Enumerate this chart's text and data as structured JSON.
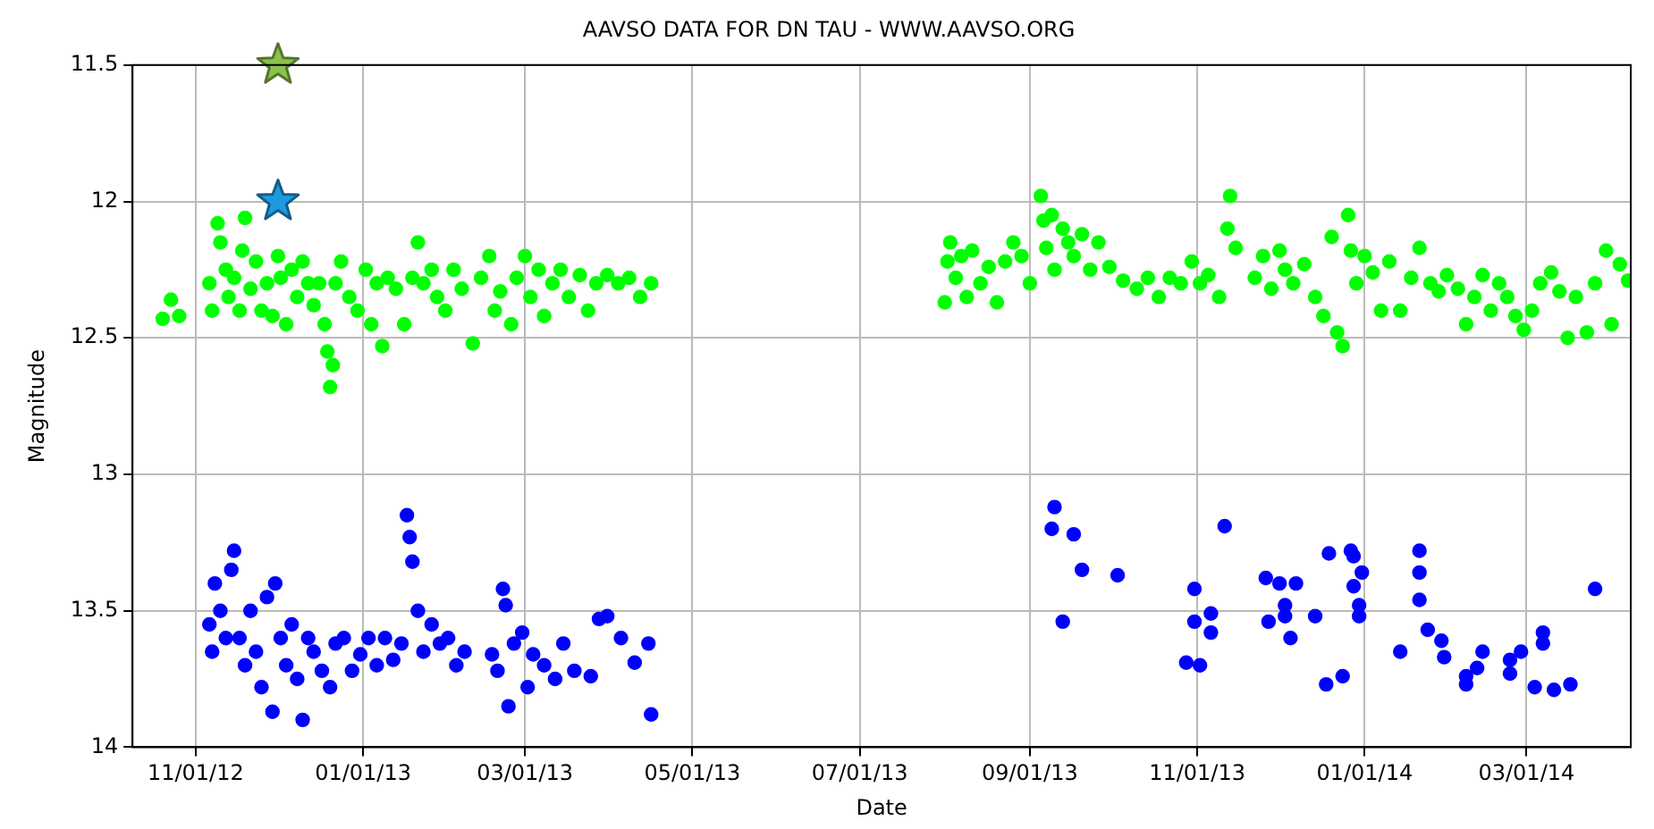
{
  "chart_data": {
    "type": "scatter",
    "title": "AAVSO DATA FOR DN TAU - WWW.AAVSO.ORG",
    "xlabel": "Date",
    "ylabel": "Magnitude",
    "xlim": [
      "2012-10-09",
      "2014-04-08"
    ],
    "ylim": [
      14,
      11.5
    ],
    "xticks": [
      {
        "value": "2012-11-01",
        "label": "11/01/12"
      },
      {
        "value": "2013-01-01",
        "label": "01/01/13"
      },
      {
        "value": "2013-03-01",
        "label": "03/01/13"
      },
      {
        "value": "2013-05-01",
        "label": "05/01/13"
      },
      {
        "value": "2013-07-01",
        "label": "07/01/13"
      },
      {
        "value": "2013-09-01",
        "label": "09/01/13"
      },
      {
        "value": "2013-11-01",
        "label": "11/01/13"
      },
      {
        "value": "2014-01-01",
        "label": "01/01/14"
      },
      {
        "value": "2014-03-01",
        "label": "03/01/14"
      }
    ],
    "yticks": [
      11.5,
      12,
      12.5,
      13,
      13.5,
      14
    ],
    "grid": true,
    "legend": false,
    "marker": "circle",
    "series": [
      {
        "color": "#00ff00",
        "x": [
          "2012-10-20",
          "2012-10-23",
          "2012-10-26",
          "2012-11-06",
          "2012-11-07",
          "2012-11-09",
          "2012-11-10",
          "2012-11-12",
          "2012-11-13",
          "2012-11-15",
          "2012-11-17",
          "2012-11-18",
          "2012-11-19",
          "2012-11-21",
          "2012-11-23",
          "2012-11-25",
          "2012-11-27",
          "2012-11-29",
          "2012-12-01",
          "2012-12-02",
          "2012-12-04",
          "2012-12-06",
          "2012-12-08",
          "2012-12-10",
          "2012-12-12",
          "2012-12-14",
          "2012-12-16",
          "2012-12-18",
          "2012-12-19",
          "2012-12-20",
          "2012-12-21",
          "2012-12-22",
          "2012-12-24",
          "2012-12-27",
          "2012-12-30",
          "2013-01-02",
          "2013-01-04",
          "2013-01-06",
          "2013-01-08",
          "2013-01-10",
          "2013-01-13",
          "2013-01-16",
          "2013-01-19",
          "2013-01-21",
          "2013-01-23",
          "2013-01-26",
          "2013-01-28",
          "2013-01-31",
          "2013-02-03",
          "2013-02-06",
          "2013-02-10",
          "2013-02-13",
          "2013-02-16",
          "2013-02-18",
          "2013-02-20",
          "2013-02-24",
          "2013-02-26",
          "2013-03-01",
          "2013-03-03",
          "2013-03-06",
          "2013-03-08",
          "2013-03-11",
          "2013-03-14",
          "2013-03-17",
          "2013-03-21",
          "2013-03-24",
          "2013-03-27",
          "2013-03-31",
          "2013-04-04",
          "2013-04-08",
          "2013-04-12",
          "2013-04-16",
          "2013-08-01",
          "2013-08-02",
          "2013-08-03",
          "2013-08-05",
          "2013-08-07",
          "2013-08-09",
          "2013-08-11",
          "2013-08-14",
          "2013-08-17",
          "2013-08-20",
          "2013-08-23",
          "2013-08-26",
          "2013-08-29",
          "2013-09-01",
          "2013-09-05",
          "2013-09-06",
          "2013-09-07",
          "2013-09-09",
          "2013-09-10",
          "2013-09-13",
          "2013-09-15",
          "2013-09-17",
          "2013-09-20",
          "2013-09-23",
          "2013-09-26",
          "2013-09-30",
          "2013-10-05",
          "2013-10-10",
          "2013-10-14",
          "2013-10-18",
          "2013-10-22",
          "2013-10-26",
          "2013-10-30",
          "2013-11-02",
          "2013-11-05",
          "2013-11-09",
          "2013-11-12",
          "2013-11-13",
          "2013-11-15",
          "2013-11-22",
          "2013-11-25",
          "2013-11-28",
          "2013-12-01",
          "2013-12-03",
          "2013-12-06",
          "2013-12-10",
          "2013-12-14",
          "2013-12-17",
          "2013-12-20",
          "2013-12-22",
          "2013-12-24",
          "2013-12-26",
          "2013-12-27",
          "2013-12-29",
          "2014-01-01",
          "2014-01-04",
          "2014-01-07",
          "2014-01-10",
          "2014-01-14",
          "2014-01-18",
          "2014-01-21",
          "2014-01-25",
          "2014-01-28",
          "2014-01-31",
          "2014-02-04",
          "2014-02-07",
          "2014-02-10",
          "2014-02-13",
          "2014-02-16",
          "2014-02-19",
          "2014-02-22",
          "2014-02-25",
          "2014-02-28",
          "2014-03-03",
          "2014-03-06",
          "2014-03-10",
          "2014-03-13",
          "2014-03-16",
          "2014-03-19",
          "2014-03-23",
          "2014-03-26",
          "2014-03-30",
          "2014-04-01",
          "2014-04-04",
          "2014-04-07"
        ],
        "values": [
          12.43,
          12.36,
          12.42,
          12.3,
          12.4,
          12.08,
          12.15,
          12.25,
          12.35,
          12.28,
          12.4,
          12.18,
          12.06,
          12.32,
          12.22,
          12.4,
          12.3,
          12.42,
          12.2,
          12.28,
          12.45,
          12.25,
          12.35,
          12.22,
          12.3,
          12.38,
          12.3,
          12.45,
          12.55,
          12.68,
          12.6,
          12.3,
          12.22,
          12.35,
          12.4,
          12.25,
          12.45,
          12.3,
          12.53,
          12.28,
          12.32,
          12.45,
          12.28,
          12.15,
          12.3,
          12.25,
          12.35,
          12.4,
          12.25,
          12.32,
          12.52,
          12.28,
          12.2,
          12.4,
          12.33,
          12.45,
          12.28,
          12.2,
          12.35,
          12.25,
          12.42,
          12.3,
          12.25,
          12.35,
          12.27,
          12.4,
          12.3,
          12.27,
          12.3,
          12.28,
          12.35,
          12.3,
          12.37,
          12.22,
          12.15,
          12.28,
          12.2,
          12.35,
          12.18,
          12.3,
          12.24,
          12.37,
          12.22,
          12.15,
          12.2,
          12.3,
          11.98,
          12.07,
          12.17,
          12.05,
          12.25,
          12.1,
          12.15,
          12.2,
          12.12,
          12.25,
          12.15,
          12.24,
          12.29,
          12.32,
          12.28,
          12.35,
          12.28,
          12.3,
          12.22,
          12.3,
          12.27,
          12.35,
          12.1,
          11.98,
          12.17,
          12.28,
          12.2,
          12.32,
          12.18,
          12.25,
          12.3,
          12.23,
          12.35,
          12.42,
          12.13,
          12.48,
          12.53,
          12.05,
          12.18,
          12.3,
          12.2,
          12.26,
          12.4,
          12.22,
          12.4,
          12.28,
          12.17,
          12.3,
          12.33,
          12.27,
          12.32,
          12.45,
          12.35,
          12.27,
          12.4,
          12.3,
          12.35,
          12.42,
          12.47,
          12.4,
          12.3,
          12.26,
          12.33,
          12.5,
          12.35,
          12.48,
          12.3,
          12.18,
          12.45,
          12.23,
          12.29
        ]
      },
      {
        "color": "#0000ff",
        "x": [
          "2012-11-06",
          "2012-11-07",
          "2012-11-08",
          "2012-11-10",
          "2012-11-12",
          "2012-11-14",
          "2012-11-15",
          "2012-11-17",
          "2012-11-19",
          "2012-11-21",
          "2012-11-23",
          "2012-11-25",
          "2012-11-27",
          "2012-11-29",
          "2012-11-30",
          "2012-12-02",
          "2012-12-04",
          "2012-12-06",
          "2012-12-08",
          "2012-12-10",
          "2012-12-12",
          "2012-12-14",
          "2012-12-17",
          "2012-12-20",
          "2012-12-22",
          "2012-12-25",
          "2012-12-28",
          "2012-12-31",
          "2013-01-03",
          "2013-01-06",
          "2013-01-09",
          "2013-01-12",
          "2013-01-15",
          "2013-01-17",
          "2013-01-18",
          "2013-01-19",
          "2013-01-21",
          "2013-01-23",
          "2013-01-26",
          "2013-01-29",
          "2013-02-01",
          "2013-02-04",
          "2013-02-07",
          "2013-02-17",
          "2013-02-19",
          "2013-02-21",
          "2013-02-22",
          "2013-02-23",
          "2013-02-25",
          "2013-02-28",
          "2013-03-02",
          "2013-03-04",
          "2013-03-08",
          "2013-03-12",
          "2013-03-15",
          "2013-03-19",
          "2013-03-25",
          "2013-03-28",
          "2013-03-31",
          "2013-04-05",
          "2013-04-10",
          "2013-04-15",
          "2013-04-16",
          "2013-09-09",
          "2013-09-10",
          "2013-09-13",
          "2013-09-17",
          "2013-09-20",
          "2013-10-03",
          "2013-10-28",
          "2013-10-31",
          "2013-10-31",
          "2013-11-02",
          "2013-11-06",
          "2013-11-06",
          "2013-11-11",
          "2013-11-26",
          "2013-11-27",
          "2013-12-01",
          "2013-12-03",
          "2013-12-03",
          "2013-12-05",
          "2013-12-07",
          "2013-12-14",
          "2013-12-18",
          "2013-12-19",
          "2013-12-24",
          "2013-12-27",
          "2013-12-28",
          "2013-12-28",
          "2013-12-30",
          "2013-12-30",
          "2013-12-31",
          "2014-01-14",
          "2014-01-21",
          "2014-01-21",
          "2014-01-21",
          "2014-01-24",
          "2014-01-29",
          "2014-01-30",
          "2014-02-07",
          "2014-02-07",
          "2014-02-11",
          "2014-02-13",
          "2014-02-23",
          "2014-02-23",
          "2014-02-27",
          "2014-03-04",
          "2014-03-07",
          "2014-03-07",
          "2014-03-11",
          "2014-03-17",
          "2014-03-26"
        ],
        "values": [
          13.55,
          13.65,
          13.4,
          13.5,
          13.6,
          13.35,
          13.28,
          13.6,
          13.7,
          13.5,
          13.65,
          13.78,
          13.45,
          13.87,
          13.4,
          13.6,
          13.7,
          13.55,
          13.75,
          13.9,
          13.6,
          13.65,
          13.72,
          13.78,
          13.62,
          13.6,
          13.72,
          13.66,
          13.6,
          13.7,
          13.6,
          13.68,
          13.62,
          13.15,
          13.23,
          13.32,
          13.5,
          13.65,
          13.55,
          13.62,
          13.6,
          13.7,
          13.65,
          13.66,
          13.72,
          13.42,
          13.48,
          13.85,
          13.62,
          13.58,
          13.78,
          13.66,
          13.7,
          13.75,
          13.62,
          13.72,
          13.74,
          13.53,
          13.52,
          13.6,
          13.69,
          13.62,
          13.88,
          13.2,
          13.12,
          13.54,
          13.22,
          13.35,
          13.37,
          13.69,
          13.42,
          13.54,
          13.7,
          13.51,
          13.58,
          13.19,
          13.38,
          13.54,
          13.4,
          13.48,
          13.52,
          13.6,
          13.4,
          13.52,
          13.77,
          13.29,
          13.74,
          13.28,
          13.41,
          13.3,
          13.48,
          13.52,
          13.36,
          13.65,
          13.28,
          13.36,
          13.46,
          13.57,
          13.61,
          13.67,
          13.74,
          13.77,
          13.71,
          13.65,
          13.68,
          13.73,
          13.65,
          13.78,
          13.58,
          13.62,
          13.79,
          13.77,
          13.42
        ]
      },
      {
        "color": "#8bc34a",
        "marker": "star",
        "x": [
          "2012-12-01"
        ],
        "values": [
          11.5
        ]
      },
      {
        "color": "#1e9be0",
        "marker": "star",
        "x": [
          "2012-12-01"
        ],
        "values": [
          12.0
        ]
      }
    ]
  }
}
